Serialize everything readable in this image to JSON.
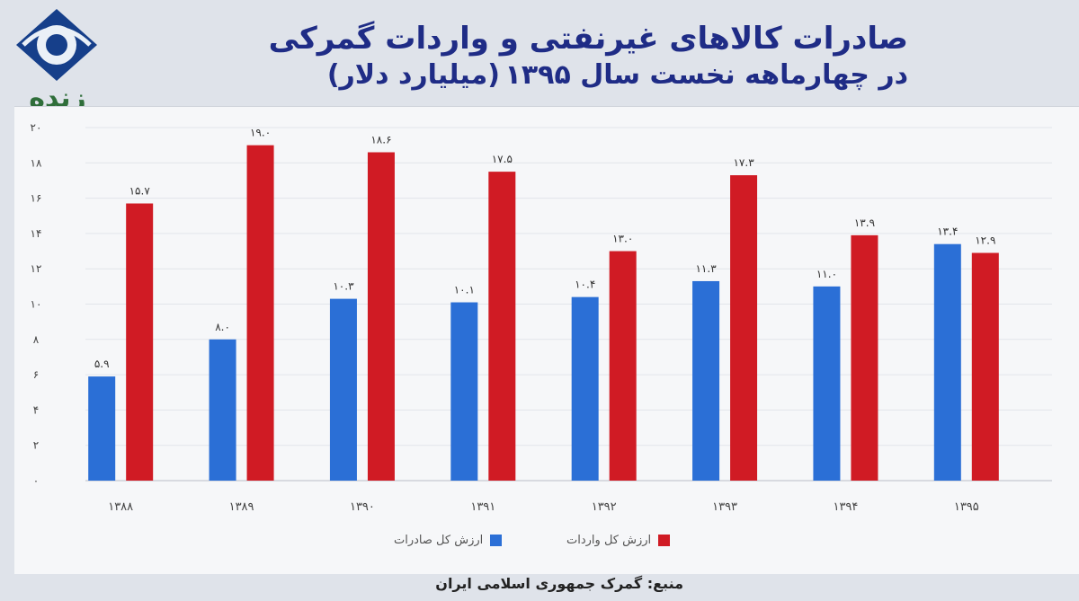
{
  "channel": {
    "logo_text": "زنده",
    "colors": {
      "logo_blue": "#163f8a",
      "logo_green": "#2f6e3a"
    }
  },
  "title": {
    "line1": "صادرات کالاهای غیرنفتی و واردات گمرکی",
    "line2": "در چهارماهه نخست سال ۱۳۹۵",
    "unit": "(میلیارد دلار)"
  },
  "source": "منبع: گمرک جمهوری اسلامی ایران",
  "chart_data": {
    "type": "bar",
    "title": "صادرات کالاهای غیرنفتی و واردات گمرکی در چهارماهه نخست سال ۱۳۹۵ (میلیارد دلار)",
    "categories": [
      "۱۳۸۸",
      "۱۳۸۹",
      "۱۳۹۰",
      "۱۳۹۱",
      "۱۳۹۲",
      "۱۳۹۳",
      "۱۳۹۴",
      "۱۳۹۵"
    ],
    "series": [
      {
        "name": "ارزش کل صادرات",
        "color": "#2b6fd6",
        "values": [
          5.9,
          8.0,
          10.3,
          10.1,
          10.4,
          11.3,
          11.0,
          13.4
        ],
        "labels": [
          "۵.۹",
          "۸.۰",
          "۱۰.۳",
          "۱۰.۱",
          "۱۰.۴",
          "۱۱.۳",
          "۱۱.۰",
          "۱۳.۴"
        ]
      },
      {
        "name": "ارزش کل واردات",
        "color": "#d01b24",
        "values": [
          15.7,
          19.0,
          18.6,
          17.5,
          13.0,
          17.3,
          13.9,
          12.9
        ],
        "labels": [
          "۱۵.۷",
          "۱۹.۰",
          "۱۸.۶",
          "۱۷.۵",
          "۱۳.۰",
          "۱۷.۳",
          "۱۳.۹",
          "۱۲.۹"
        ]
      }
    ],
    "ylim": [
      0,
      20
    ],
    "yticks": [
      0,
      2,
      4,
      6,
      8,
      10,
      12,
      14,
      16,
      18,
      20
    ],
    "ytick_labels": [
      "۰",
      "۲",
      "۴",
      "۶",
      "۸",
      "۱۰",
      "۱۲",
      "۱۴",
      "۱۶",
      "۱۸",
      "۲۰"
    ],
    "grid": true,
    "legend_position": "bottom"
  }
}
